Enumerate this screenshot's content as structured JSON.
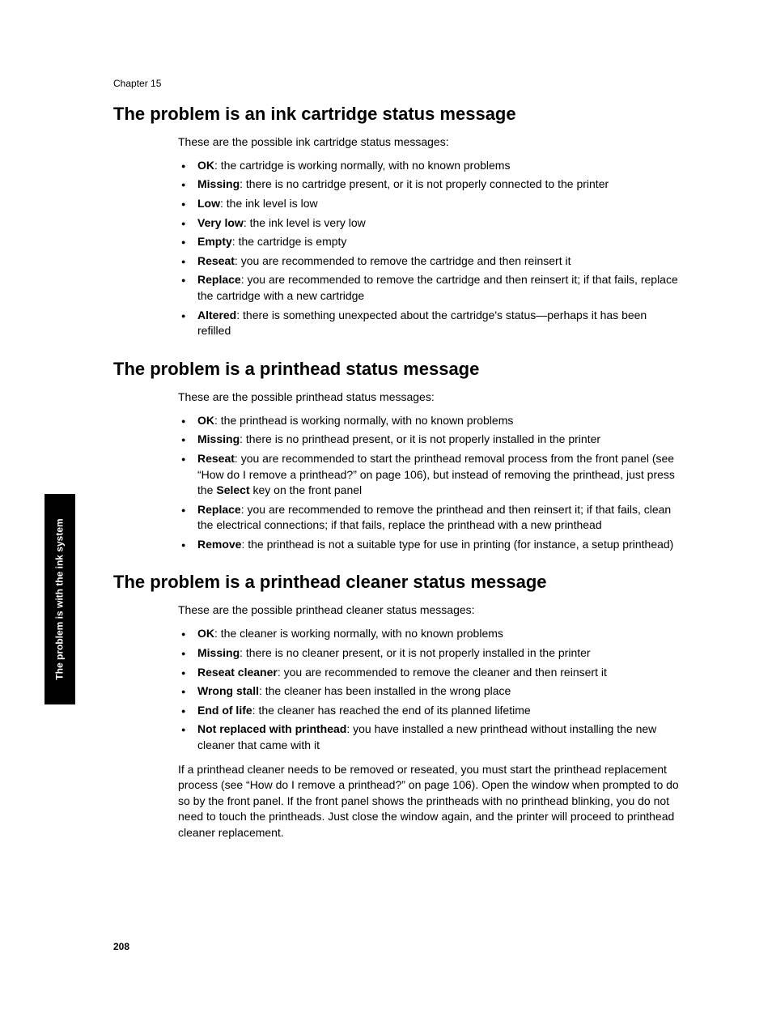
{
  "chapter_label": "Chapter 15",
  "side_tab": "The problem is with the ink system",
  "page_number": "208",
  "sections": [
    {
      "heading": "The problem is an ink cartridge status message",
      "intro": "These are the possible ink cartridge status messages:",
      "items": [
        {
          "term": "OK",
          "desc": ": the cartridge is working normally, with no known problems"
        },
        {
          "term": "Missing",
          "desc": ": there is no cartridge present, or it is not properly connected to the printer"
        },
        {
          "term": "Low",
          "desc": ": the ink level is low"
        },
        {
          "term": "Very low",
          "desc": ": the ink level is very low"
        },
        {
          "term": "Empty",
          "desc": ": the cartridge is empty"
        },
        {
          "term": "Reseat",
          "desc": ": you are recommended to remove the cartridge and then reinsert it"
        },
        {
          "term": "Replace",
          "desc": ": you are recommended to remove the cartridge and then reinsert it; if that fails, replace the cartridge with a new cartridge"
        },
        {
          "term": "Altered",
          "desc": ": there is something unexpected about the cartridge's status—perhaps it has been refilled"
        }
      ]
    },
    {
      "heading": "The problem is a printhead status message",
      "intro": "These are the possible printhead status messages:",
      "items": [
        {
          "term": "OK",
          "desc": ": the printhead is working normally, with no known problems"
        },
        {
          "term": "Missing",
          "desc": ": there is no printhead present, or it is not properly installed in the printer"
        },
        {
          "term": "Reseat",
          "desc_pre": ": you are recommended to start the printhead removal process from the front panel (see “How do I remove a printhead?” on page 106), but instead of removing the printhead, just press the ",
          "bold_mid": "Select",
          "desc_post": " key on the front panel"
        },
        {
          "term": "Replace",
          "desc": ": you are recommended to remove the printhead and then reinsert it; if that fails, clean the electrical connections; if that fails, replace the printhead with a new printhead"
        },
        {
          "term": "Remove",
          "desc": ": the printhead is not a suitable type for use in printing (for instance, a setup printhead)"
        }
      ]
    },
    {
      "heading": "The problem is a printhead cleaner status message",
      "intro": "These are the possible printhead cleaner status messages:",
      "items": [
        {
          "term": "OK",
          "desc": ": the cleaner is working normally, with no known problems"
        },
        {
          "term": "Missing",
          "desc": ": there is no cleaner present, or it is not properly installed in the printer"
        },
        {
          "term": "Reseat cleaner",
          "desc": ": you are recommended to remove the cleaner and then reinsert it"
        },
        {
          "term": "Wrong stall",
          "desc": ": the cleaner has been installed in the wrong place"
        },
        {
          "term": "End of life",
          "desc": ": the cleaner has reached the end of its planned lifetime"
        },
        {
          "term": "Not replaced with printhead",
          "desc": ": you have installed a new printhead without installing the new cleaner that came with it"
        }
      ],
      "followup": "If a printhead cleaner needs to be removed or reseated, you must start the printhead replacement process (see “How do I remove a printhead?” on page 106). Open the window when prompted to do so by the front panel. If the front panel shows the printheads with no printhead blinking, you do not need to touch the printheads. Just close the window again, and the printer will proceed to printhead cleaner replacement."
    }
  ]
}
